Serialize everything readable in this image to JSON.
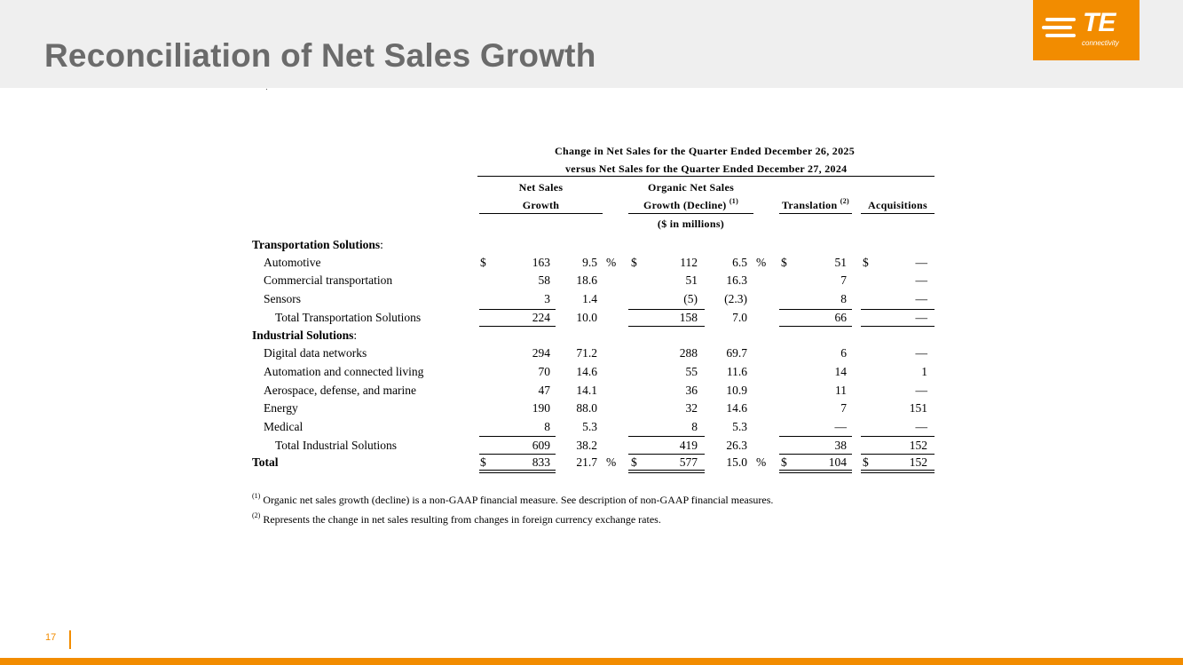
{
  "header": {
    "title": "Reconciliation of Net Sales Growth"
  },
  "logo": {
    "mark": "TE",
    "sub": "connectivity",
    "color": "#f28c00"
  },
  "table": {
    "title_line1": "Change in Net Sales for the Quarter Ended December 26, 2025",
    "title_line2": "versus Net Sales for the Quarter Ended December 27, 2024",
    "col_net_sales_1": "Net Sales",
    "col_net_sales_2": "Growth",
    "col_organic_1": "Organic Net Sales",
    "col_organic_2": "Growth (Decline)",
    "col_organic_sup": "(1)",
    "col_translation": "Translation",
    "col_translation_sup": "(2)",
    "col_acquisitions": "Acquisitions",
    "units": "($ in millions)",
    "section_transport": "Transportation Solutions",
    "section_industrial": "Industrial Solutions",
    "colon": ":",
    "dollar": "$",
    "percent": "%",
    "rows": [
      {
        "label": "Automotive",
        "ns": "163",
        "nsp": "9.5",
        "og": "112",
        "ogp": "6.5",
        "tr": "51",
        "acq": "—"
      },
      {
        "label": "Commercial transportation",
        "ns": "58",
        "nsp": "18.6",
        "og": "51",
        "ogp": "16.3",
        "tr": "7",
        "acq": "—"
      },
      {
        "label": "Sensors",
        "ns": "3",
        "nsp": "1.4",
        "og": "(5)",
        "ogp": "(2.3)",
        "tr": "8",
        "acq": "—"
      },
      {
        "label": "Total Transportation Solutions",
        "ns": "224",
        "nsp": "10.0",
        "og": "158",
        "ogp": "7.0",
        "tr": "66",
        "acq": "—"
      },
      {
        "label": "Digital data networks",
        "ns": "294",
        "nsp": "71.2",
        "og": "288",
        "ogp": "69.7",
        "tr": "6",
        "acq": "—"
      },
      {
        "label": "Automation and connected living",
        "ns": "70",
        "nsp": "14.6",
        "og": "55",
        "ogp": "11.6",
        "tr": "14",
        "acq": "1"
      },
      {
        "label": "Aerospace, defense, and marine",
        "ns": "47",
        "nsp": "14.1",
        "og": "36",
        "ogp": "10.9",
        "tr": "11",
        "acq": "—"
      },
      {
        "label": "Energy",
        "ns": "190",
        "nsp": "88.0",
        "og": "32",
        "ogp": "14.6",
        "tr": "7",
        "acq": "151"
      },
      {
        "label": "Medical",
        "ns": "8",
        "nsp": "5.3",
        "og": "8",
        "ogp": "5.3",
        "tr": "—",
        "acq": "—"
      },
      {
        "label": "Total Industrial Solutions",
        "ns": "609",
        "nsp": "38.2",
        "og": "419",
        "ogp": "26.3",
        "tr": "38",
        "acq": "152"
      },
      {
        "label": "Total",
        "ns": "833",
        "nsp": "21.7",
        "og": "577",
        "ogp": "15.0",
        "tr": "104",
        "acq": "152"
      }
    ]
  },
  "footnotes": {
    "fn1_sup": "(1)",
    "fn1": "Organic net sales growth (decline) is a non-GAAP financial measure. See description of non-GAAP financial measures.",
    "fn2_sup": "(2)",
    "fn2": "Represents the change in net sales resulting from changes in foreign currency exchange rates."
  },
  "page": {
    "number": "17"
  }
}
